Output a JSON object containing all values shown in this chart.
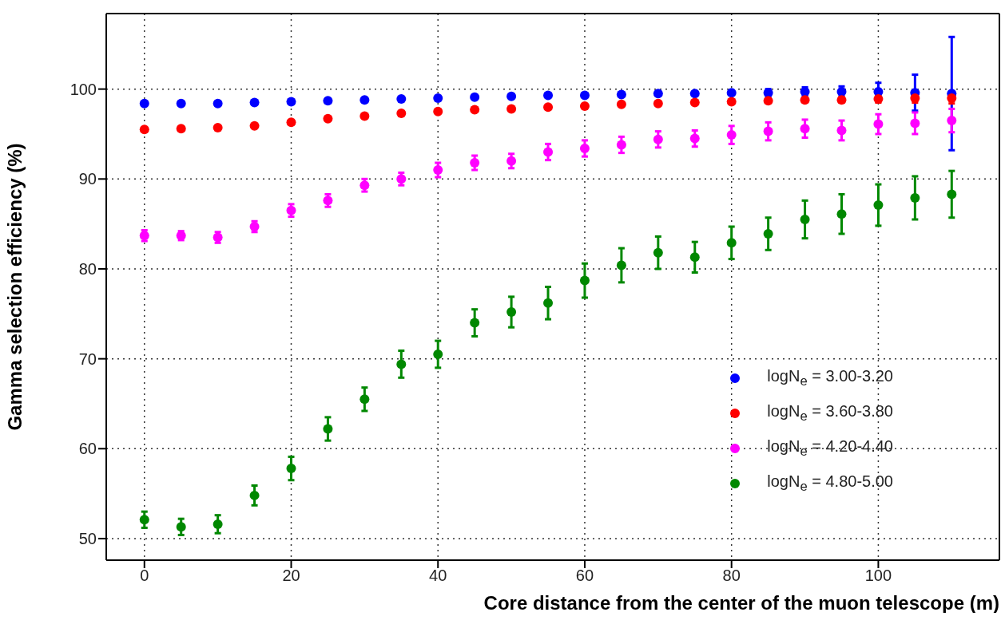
{
  "chart_data": {
    "type": "scatter",
    "xlabel": "Core distance from the center of the muon telescope (m)",
    "ylabel": "Gamma selection efficiency (%)",
    "x": [
      0,
      5,
      10,
      15,
      20,
      25,
      30,
      35,
      40,
      45,
      50,
      55,
      60,
      65,
      70,
      75,
      80,
      85,
      90,
      95,
      100,
      105,
      110
    ],
    "xlim": [
      -5.2,
      116.5
    ],
    "xticks": [
      0,
      20,
      40,
      60,
      80,
      100
    ],
    "ylim": [
      47.6,
      108.4
    ],
    "yticks": [
      50,
      60,
      70,
      80,
      90,
      100
    ],
    "grid": true,
    "legend": "bottom right",
    "marker": "circle",
    "series": [
      {
        "name": "logN$_{e}$ = 3.00-3.20",
        "color": "#0000ff",
        "values": [
          98.4,
          98.4,
          98.4,
          98.5,
          98.6,
          98.7,
          98.8,
          98.9,
          99.0,
          99.1,
          99.2,
          99.3,
          99.3,
          99.4,
          99.5,
          99.5,
          99.6,
          99.6,
          99.7,
          99.7,
          99.7,
          99.6,
          99.5
        ],
        "errors": [
          null,
          null,
          null,
          null,
          null,
          null,
          null,
          null,
          null,
          null,
          null,
          null,
          null,
          null,
          null,
          null,
          null,
          0.4,
          0.5,
          0.6,
          1.0,
          2.0,
          6.3
        ]
      },
      {
        "name": "logN$_{e}$ = 3.60-3.80",
        "color": "#ff0000",
        "values": [
          95.5,
          95.6,
          95.7,
          95.9,
          96.3,
          96.7,
          97.0,
          97.3,
          97.5,
          97.7,
          97.8,
          98.0,
          98.1,
          98.3,
          98.4,
          98.5,
          98.6,
          98.7,
          98.8,
          98.8,
          98.9,
          99.0,
          99.0
        ],
        "errors": [
          null,
          null,
          null,
          null,
          null,
          null,
          null,
          null,
          null,
          null,
          null,
          null,
          null,
          null,
          null,
          null,
          null,
          null,
          null,
          0.3,
          0.4,
          0.5,
          0.6
        ]
      },
      {
        "name": "logN$_{e}$ = 4.20-4.40",
        "color": "#ff00ff",
        "values": [
          83.7,
          83.7,
          83.5,
          84.7,
          86.5,
          87.6,
          89.3,
          90.0,
          91.0,
          91.8,
          92.0,
          93.0,
          93.4,
          93.8,
          94.4,
          94.5,
          94.9,
          95.3,
          95.6,
          95.4,
          96.1,
          96.2,
          96.5
        ],
        "errors": [
          0.6,
          0.5,
          0.6,
          0.6,
          0.7,
          0.7,
          0.7,
          0.7,
          0.8,
          0.8,
          0.8,
          0.9,
          0.9,
          0.9,
          0.9,
          0.9,
          1.0,
          1.0,
          1.0,
          1.1,
          1.1,
          1.2,
          1.3
        ]
      },
      {
        "name": "logN$_{e}$ = 4.80-5.00",
        "color": "#008800",
        "values": [
          52.1,
          51.3,
          51.6,
          54.8,
          57.8,
          62.2,
          65.5,
          69.4,
          70.5,
          74.0,
          75.2,
          76.2,
          78.7,
          80.4,
          81.8,
          81.3,
          82.9,
          83.9,
          85.5,
          86.1,
          87.1,
          87.9,
          88.3
        ],
        "errors": [
          0.9,
          0.9,
          1.0,
          1.1,
          1.3,
          1.3,
          1.3,
          1.5,
          1.5,
          1.5,
          1.7,
          1.8,
          1.9,
          1.9,
          1.8,
          1.7,
          1.8,
          1.8,
          2.1,
          2.2,
          2.3,
          2.4,
          2.6
        ]
      }
    ]
  }
}
